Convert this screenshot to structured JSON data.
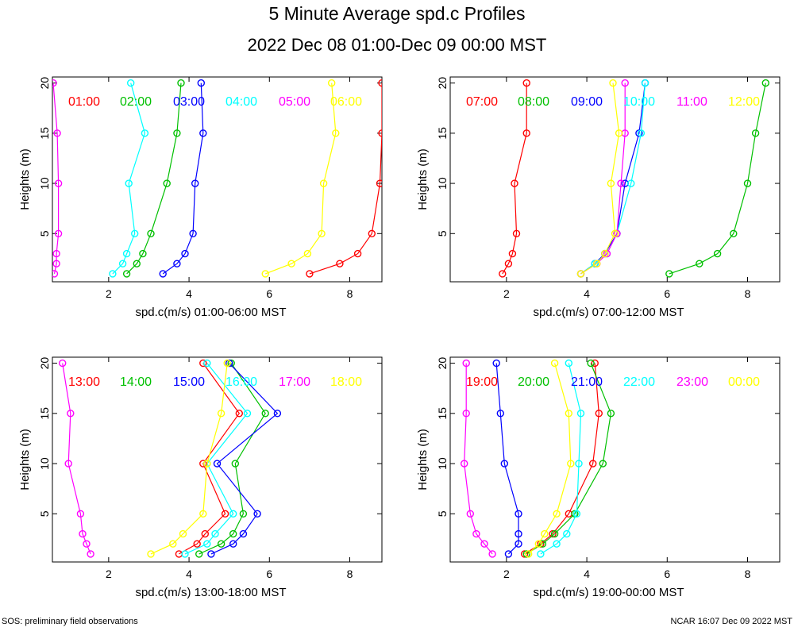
{
  "title": "5 Minute Average spd.c Profiles",
  "subtitle": "2022 Dec 08 01:00-Dec 09 00:00 MST",
  "footer_left": "SOS: preliminary field observations",
  "footer_right": "NCAR 16:07 Dec 09 2022 MST",
  "chart_data": [
    {
      "type": "line",
      "xlabel": "spd.c(m/s) 01:00-06:00 MST",
      "ylabel": "Heights (m)",
      "xlim": [
        0.6,
        8.8
      ],
      "ylim": [
        0.2,
        20.6
      ],
      "xticks": [
        2,
        4,
        6,
        8
      ],
      "yticks": [
        5,
        10,
        15,
        20
      ],
      "heights": [
        1,
        2,
        3,
        5,
        10,
        15,
        20
      ],
      "series": [
        {
          "name": "01:00",
          "color": "#ff0000",
          "values": [
            7.0,
            7.75,
            8.2,
            8.55,
            8.75,
            8.8,
            8.8
          ]
        },
        {
          "name": "02:00",
          "color": "#00c000",
          "values": [
            2.45,
            2.7,
            2.85,
            3.05,
            3.45,
            3.7,
            3.8
          ]
        },
        {
          "name": "03:00",
          "color": "#0000ff",
          "values": [
            3.35,
            3.7,
            3.9,
            4.1,
            4.15,
            4.35,
            4.3
          ]
        },
        {
          "name": "04:00",
          "color": "#00ffff",
          "values": [
            2.1,
            2.35,
            2.45,
            2.65,
            2.5,
            2.9,
            2.55
          ]
        },
        {
          "name": "05:00",
          "color": "#ff00ff",
          "values": [
            0.65,
            0.7,
            0.7,
            0.75,
            0.75,
            0.72,
            0.62
          ]
        },
        {
          "name": "06:00",
          "color": "#ffff00",
          "values": [
            5.9,
            6.55,
            6.95,
            7.3,
            7.35,
            7.65,
            7.55
          ]
        }
      ]
    },
    {
      "type": "line",
      "xlabel": "spd.c(m/s) 07:00-12:00 MST",
      "ylabel": "Heights (m)",
      "xlim": [
        0.6,
        8.8
      ],
      "ylim": [
        0.2,
        20.6
      ],
      "xticks": [
        2,
        4,
        6,
        8
      ],
      "yticks": [
        5,
        10,
        15,
        20
      ],
      "heights": [
        1,
        2,
        3,
        5,
        10,
        15,
        20
      ],
      "series": [
        {
          "name": "07:00",
          "color": "#ff0000",
          "values": [
            1.9,
            2.05,
            2.15,
            2.25,
            2.2,
            2.5,
            2.5
          ]
        },
        {
          "name": "08:00",
          "color": "#00c000",
          "values": [
            6.05,
            6.8,
            7.25,
            7.65,
            8.0,
            8.2,
            8.45
          ]
        },
        {
          "name": "09:00",
          "color": "#0000ff",
          "values": [
            3.85,
            4.2,
            4.45,
            4.75,
            4.95,
            5.3,
            5.45
          ]
        },
        {
          "name": "10:00",
          "color": "#00ffff",
          "values": [
            3.85,
            4.2,
            4.5,
            4.75,
            5.1,
            5.35,
            5.45
          ]
        },
        {
          "name": "11:00",
          "color": "#ff00ff",
          "values": [
            3.85,
            4.25,
            4.5,
            4.75,
            4.85,
            4.95,
            4.95
          ]
        },
        {
          "name": "12:00",
          "color": "#ffff00",
          "values": [
            3.85,
            4.25,
            4.45,
            4.7,
            4.6,
            4.8,
            4.65
          ]
        }
      ]
    },
    {
      "type": "line",
      "xlabel": "spd.c(m/s) 13:00-18:00 MST",
      "ylabel": "Heights (m)",
      "xlim": [
        0.6,
        8.8
      ],
      "ylim": [
        0.2,
        20.6
      ],
      "xticks": [
        2,
        4,
        6,
        8
      ],
      "yticks": [
        5,
        10,
        15,
        20
      ],
      "heights": [
        1,
        2,
        3,
        5,
        10,
        15,
        20
      ],
      "series": [
        {
          "name": "13:00",
          "color": "#ff0000",
          "values": [
            3.75,
            4.2,
            4.4,
            4.9,
            4.35,
            5.25,
            4.35
          ]
        },
        {
          "name": "14:00",
          "color": "#00c000",
          "values": [
            4.25,
            4.8,
            5.1,
            5.35,
            5.15,
            5.9,
            5.05
          ]
        },
        {
          "name": "15:00",
          "color": "#0000ff",
          "values": [
            4.55,
            5.1,
            5.35,
            5.7,
            4.7,
            6.2,
            5.0
          ]
        },
        {
          "name": "16:00",
          "color": "#00ffff",
          "values": [
            3.9,
            4.45,
            4.65,
            5.1,
            4.45,
            5.45,
            4.45
          ]
        },
        {
          "name": "17:00",
          "color": "#ff00ff",
          "values": [
            1.55,
            1.45,
            1.35,
            1.3,
            1.0,
            1.05,
            0.85
          ]
        },
        {
          "name": "18:00",
          "color": "#ffff00",
          "values": [
            3.05,
            3.6,
            3.85,
            4.35,
            4.45,
            4.8,
            4.95
          ]
        }
      ]
    },
    {
      "type": "line",
      "xlabel": "spd.c(m/s) 19:00-00:00 MST",
      "ylabel": "Heights (m)",
      "xlim": [
        0.6,
        8.8
      ],
      "ylim": [
        0.2,
        20.6
      ],
      "xticks": [
        2,
        4,
        6,
        8
      ],
      "yticks": [
        5,
        10,
        15,
        20
      ],
      "heights": [
        1,
        2,
        3,
        5,
        10,
        15,
        20
      ],
      "series": [
        {
          "name": "19:00",
          "color": "#ff0000",
          "values": [
            2.45,
            2.85,
            3.15,
            3.55,
            4.15,
            4.3,
            4.2
          ]
        },
        {
          "name": "20:00",
          "color": "#00c000",
          "values": [
            2.5,
            2.9,
            3.2,
            3.7,
            4.4,
            4.6,
            4.1
          ]
        },
        {
          "name": "21:00",
          "color": "#0000ff",
          "values": [
            2.05,
            2.3,
            2.3,
            2.3,
            1.95,
            1.85,
            1.75
          ]
        },
        {
          "name": "22:00",
          "color": "#00ffff",
          "values": [
            2.85,
            3.25,
            3.5,
            3.75,
            3.8,
            3.85,
            3.55
          ]
        },
        {
          "name": "23:00",
          "color": "#ff00ff",
          "values": [
            1.65,
            1.45,
            1.25,
            1.1,
            0.95,
            1.0,
            1.0
          ]
        },
        {
          "name": "00:00",
          "color": "#ffff00",
          "values": [
            2.55,
            2.8,
            2.95,
            3.25,
            3.6,
            3.55,
            3.2
          ]
        }
      ]
    }
  ]
}
